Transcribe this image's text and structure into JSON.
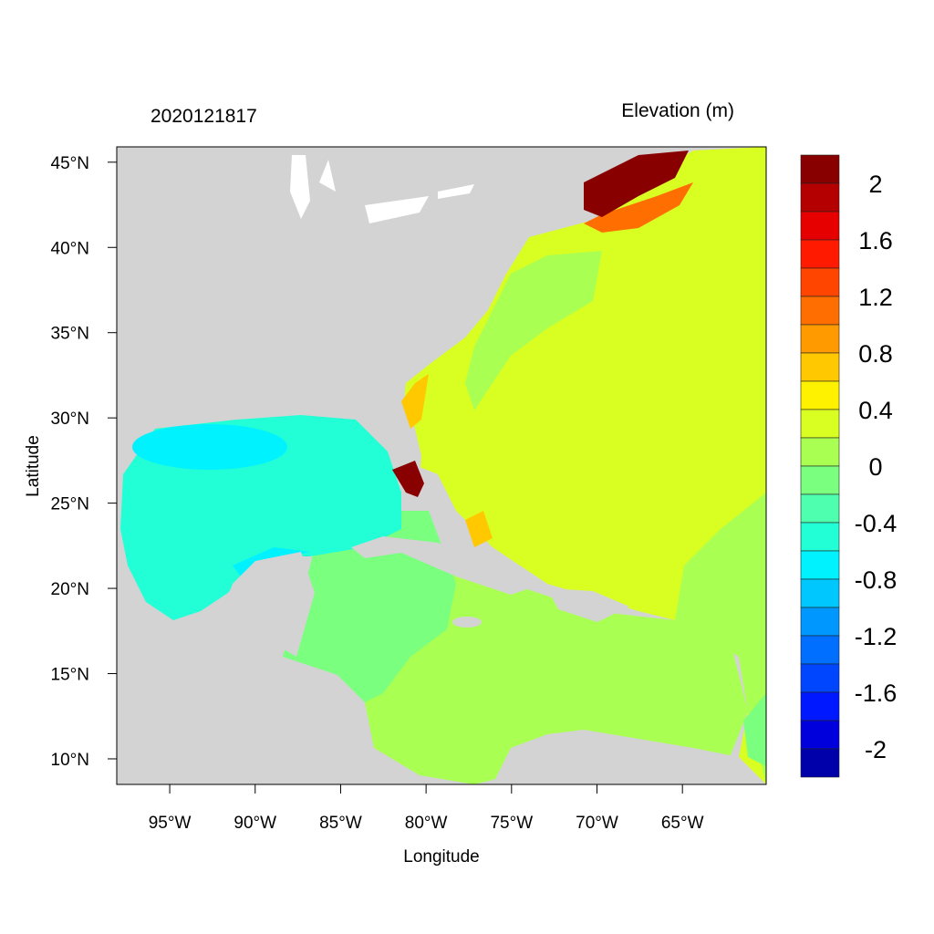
{
  "title_left": "2020121817",
  "title_right": "Elevation (m)",
  "xlabel": "Longitude",
  "ylabel": "Latitude",
  "x_ticks": [
    "95°W",
    "90°W",
    "85°W",
    "80°W",
    "75°W",
    "70°W",
    "65°W"
  ],
  "x_tick_values": [
    -95,
    -90,
    -85,
    -80,
    -75,
    -70,
    -65
  ],
  "y_ticks": [
    "45°N",
    "40°N",
    "35°N",
    "30°N",
    "25°N",
    "20°N",
    "15°N",
    "10°N"
  ],
  "y_tick_values": [
    45,
    40,
    35,
    30,
    25,
    20,
    15,
    10
  ],
  "lon_range": [
    -98.1,
    -60.1
  ],
  "lat_range": [
    8.5,
    45.9
  ],
  "colorbar": {
    "labels": [
      "2",
      "1.6",
      "1.2",
      "0.8",
      "0.4",
      "0",
      "-0.4",
      "-0.8",
      "-1.2",
      "-1.6",
      "-2"
    ],
    "levels_top_to_bottom": [
      2.2,
      2.0,
      1.8,
      1.6,
      1.4,
      1.2,
      1.0,
      0.8,
      0.6,
      0.4,
      0.2,
      0.0,
      -0.2,
      -0.4,
      -0.6,
      -0.8,
      -1.0,
      -1.2,
      -1.4,
      -1.6,
      -1.8,
      -2.0,
      -2.2
    ],
    "colors_top_to_bottom": [
      "#880000",
      "#B40000",
      "#E60000",
      "#FF1A00",
      "#FF4500",
      "#FF6E00",
      "#FF9A00",
      "#FFC800",
      "#FFF200",
      "#D9FF22",
      "#A9FF52",
      "#7BFF7F",
      "#4DFFAE",
      "#22FFD6",
      "#00F2FF",
      "#00C8FF",
      "#0098FF",
      "#006EFF",
      "#0046FF",
      "#0018FF",
      "#0000DD",
      "#0000AA"
    ]
  },
  "colors": {
    "land": "#D3D3D3",
    "lakes": "#FFFFFF"
  }
}
